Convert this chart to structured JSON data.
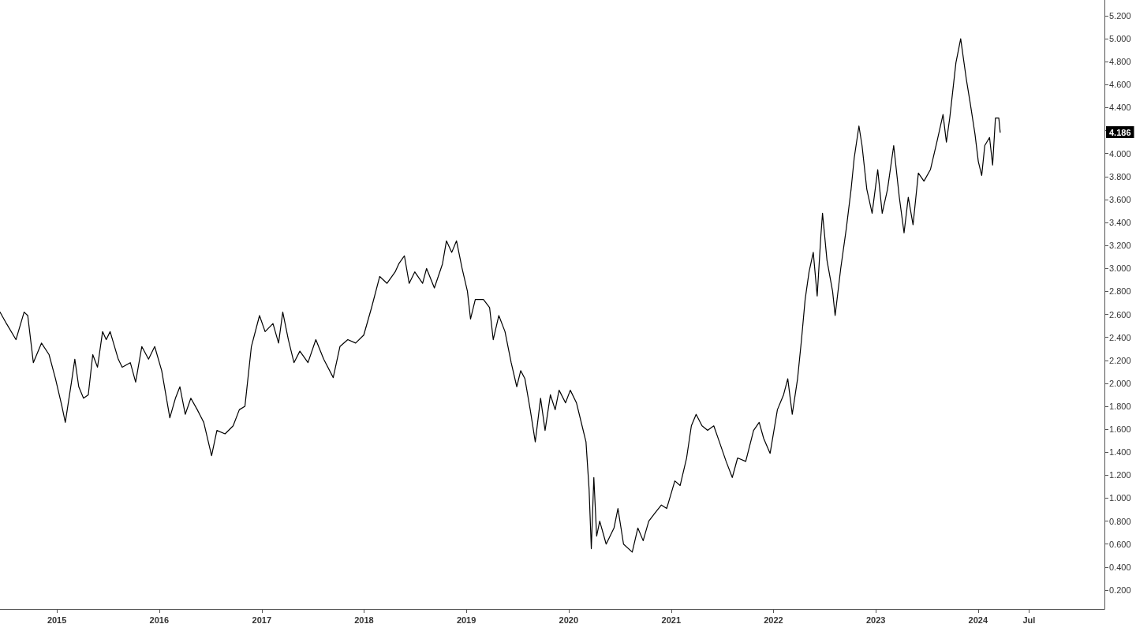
{
  "chart_data": {
    "type": "line",
    "x": [
      "2014-06-12",
      "2014-07-05",
      "2014-08-08",
      "2014-09-06",
      "2014-09-19",
      "2014-10-09",
      "2014-11-07",
      "2014-12-04",
      "2014-12-27",
      "2015-01-19",
      "2015-01-31",
      "2015-02-22",
      "2015-03-06",
      "2015-03-20",
      "2015-04-06",
      "2015-04-23",
      "2015-05-09",
      "2015-05-26",
      "2015-06-13",
      "2015-06-26",
      "2015-07-10",
      "2015-08-08",
      "2015-08-22",
      "2015-09-20",
      "2015-10-09",
      "2015-10-31",
      "2015-11-24",
      "2015-12-16",
      "2016-01-10",
      "2016-02-08",
      "2016-02-28",
      "2016-03-15",
      "2016-04-03",
      "2016-04-23",
      "2016-05-16",
      "2016-06-08",
      "2016-07-06",
      "2016-07-25",
      "2016-08-23",
      "2016-09-21",
      "2016-10-13",
      "2016-11-02",
      "2016-11-25",
      "2016-12-24",
      "2017-01-13",
      "2017-02-10",
      "2017-03-02",
      "2017-03-17",
      "2017-04-06",
      "2017-04-26",
      "2017-05-17",
      "2017-06-15",
      "2017-07-13",
      "2017-08-10",
      "2017-09-13",
      "2017-10-07",
      "2017-11-04",
      "2017-12-02",
      "2017-12-31",
      "2018-01-28",
      "2018-02-26",
      "2018-03-24",
      "2018-04-22",
      "2018-05-05",
      "2018-05-25",
      "2018-06-11",
      "2018-07-01",
      "2018-07-29",
      "2018-08-12",
      "2018-09-09",
      "2018-10-08",
      "2018-10-22",
      "2018-11-10",
      "2018-11-27",
      "2018-12-17",
      "2019-01-05",
      "2019-01-16",
      "2019-02-02",
      "2019-03-03",
      "2019-03-25",
      "2019-04-07",
      "2019-04-27",
      "2019-05-19",
      "2019-06-10",
      "2019-06-30",
      "2019-07-14",
      "2019-07-29",
      "2019-08-17",
      "2019-09-04",
      "2019-09-23",
      "2019-10-09",
      "2019-10-28",
      "2019-11-14",
      "2019-11-28",
      "2019-12-21",
      "2020-01-07",
      "2020-01-29",
      "2020-02-18",
      "2020-03-03",
      "2020-03-14",
      "2020-03-22",
      "2020-03-31",
      "2020-04-10",
      "2020-04-21",
      "2020-05-14",
      "2020-06-11",
      "2020-06-25",
      "2020-07-15",
      "2020-08-15",
      "2020-09-04",
      "2020-09-23",
      "2020-10-13",
      "2020-11-04",
      "2020-11-27",
      "2020-12-16",
      "2021-01-14",
      "2021-02-02",
      "2021-02-25",
      "2021-03-14",
      "2021-03-31",
      "2021-04-21",
      "2021-05-11",
      "2021-06-02",
      "2021-06-22",
      "2021-07-16",
      "2021-08-07",
      "2021-08-26",
      "2021-09-24",
      "2021-10-22",
      "2021-11-11",
      "2021-11-27",
      "2021-12-20",
      "2022-01-15",
      "2022-02-06",
      "2022-02-21",
      "2022-03-09",
      "2022-03-28",
      "2022-04-11",
      "2022-04-24",
      "2022-05-08",
      "2022-05-23",
      "2022-06-06",
      "2022-06-19",
      "2022-06-25",
      "2022-07-11",
      "2022-07-31",
      "2022-08-09",
      "2022-08-29",
      "2022-09-18",
      "2022-10-05",
      "2022-10-16",
      "2022-11-02",
      "2022-11-13",
      "2022-11-30",
      "2022-12-19",
      "2023-01-08",
      "2023-01-24",
      "2023-02-12",
      "2023-03-06",
      "2023-03-26",
      "2023-04-12",
      "2023-04-27",
      "2023-05-14",
      "2023-06-02",
      "2023-06-22",
      "2023-07-15",
      "2023-08-07",
      "2023-08-29",
      "2023-09-10",
      "2023-09-22",
      "2023-10-14",
      "2023-10-31",
      "2023-11-20",
      "2023-12-04",
      "2023-12-21",
      "2024-01-02",
      "2024-01-14",
      "2024-01-25",
      "2024-02-11",
      "2024-02-22",
      "2024-03-03",
      "2024-03-15",
      "2024-03-20"
    ],
    "series": [
      {
        "color": "#000000",
        "values": [
          2.62,
          2.52,
          2.38,
          2.62,
          2.59,
          2.18,
          2.35,
          2.25,
          2.04,
          1.8,
          1.66,
          2.01,
          2.21,
          1.97,
          1.87,
          1.9,
          2.25,
          2.14,
          2.45,
          2.38,
          2.45,
          2.21,
          2.14,
          2.18,
          2.01,
          2.32,
          2.21,
          2.32,
          2.11,
          1.7,
          1.87,
          1.97,
          1.73,
          1.87,
          1.77,
          1.66,
          1.37,
          1.59,
          1.56,
          1.63,
          1.77,
          1.8,
          2.32,
          2.59,
          2.45,
          2.52,
          2.35,
          2.62,
          2.38,
          2.18,
          2.28,
          2.18,
          2.38,
          2.21,
          2.05,
          2.32,
          2.38,
          2.35,
          2.42,
          2.66,
          2.93,
          2.87,
          2.97,
          3.04,
          3.11,
          2.87,
          2.97,
          2.87,
          3.0,
          2.83,
          3.04,
          3.24,
          3.14,
          3.24,
          3.0,
          2.8,
          2.56,
          2.73,
          2.73,
          2.66,
          2.38,
          2.59,
          2.45,
          2.18,
          1.97,
          2.11,
          2.04,
          1.77,
          1.49,
          1.87,
          1.59,
          1.9,
          1.77,
          1.94,
          1.83,
          1.94,
          1.83,
          1.63,
          1.49,
          1.08,
          0.56,
          1.18,
          0.67,
          0.8,
          0.6,
          0.74,
          0.91,
          0.6,
          0.53,
          0.74,
          0.63,
          0.8,
          0.87,
          0.94,
          0.91,
          1.15,
          1.11,
          1.35,
          1.63,
          1.73,
          1.63,
          1.59,
          1.63,
          1.49,
          1.32,
          1.18,
          1.35,
          1.32,
          1.59,
          1.66,
          1.52,
          1.39,
          1.77,
          1.9,
          2.04,
          1.73,
          2.04,
          2.38,
          2.73,
          2.97,
          3.14,
          2.76,
          3.28,
          3.48,
          3.07,
          2.8,
          2.59,
          3.0,
          3.35,
          3.69,
          3.96,
          4.24,
          4.07,
          3.69,
          3.48,
          3.86,
          3.48,
          3.69,
          4.07,
          3.62,
          3.31,
          3.62,
          3.38,
          3.83,
          3.76,
          3.86,
          4.1,
          4.34,
          4.1,
          4.31,
          4.79,
          5.0,
          4.65,
          4.44,
          4.17,
          3.93,
          3.81,
          4.07,
          4.14,
          3.9,
          4.31,
          4.31,
          4.186
        ]
      }
    ],
    "xlim": [
      "2014-06-12",
      "2025-03-27"
    ],
    "xticks": [
      {
        "value": "2015",
        "label": "2015"
      },
      {
        "value": "2016",
        "label": "2016"
      },
      {
        "value": "2017",
        "label": "2017"
      },
      {
        "value": "2018",
        "label": "2018"
      },
      {
        "value": "2019",
        "label": "2019"
      },
      {
        "value": "2020",
        "label": "2020"
      },
      {
        "value": "2021",
        "label": "2021"
      },
      {
        "value": "2022",
        "label": "2022"
      },
      {
        "value": "2023",
        "label": "2023"
      },
      {
        "value": "2024",
        "label": "2024"
      },
      {
        "value": "2024-07",
        "label": "Jul"
      }
    ],
    "ylim": [
      0.035,
      5.337
    ],
    "yticks": [
      {
        "value": 0.2,
        "label": "0.200"
      },
      {
        "value": 0.4,
        "label": "0.400"
      },
      {
        "value": 0.6,
        "label": "0.600"
      },
      {
        "value": 0.8,
        "label": "0.800"
      },
      {
        "value": 1.0,
        "label": "1.000"
      },
      {
        "value": 1.2,
        "label": "1.200"
      },
      {
        "value": 1.4,
        "label": "1.400"
      },
      {
        "value": 1.6,
        "label": "1.600"
      },
      {
        "value": 1.8,
        "label": "1.800"
      },
      {
        "value": 2.0,
        "label": "2.000"
      },
      {
        "value": 2.2,
        "label": "2.200"
      },
      {
        "value": 2.4,
        "label": "2.400"
      },
      {
        "value": 2.6,
        "label": "2.600"
      },
      {
        "value": 2.8,
        "label": "2.800"
      },
      {
        "value": 3.0,
        "label": "3.000"
      },
      {
        "value": 3.2,
        "label": "3.200"
      },
      {
        "value": 3.4,
        "label": "3.400"
      },
      {
        "value": 3.6,
        "label": "3.600"
      },
      {
        "value": 3.8,
        "label": "3.800"
      },
      {
        "value": 4.0,
        "label": "4.000"
      },
      {
        "value": 4.2,
        "label": null
      },
      {
        "value": 4.4,
        "label": "4.400"
      },
      {
        "value": 4.6,
        "label": "4.600"
      },
      {
        "value": 4.8,
        "label": "4.800"
      },
      {
        "value": 5.0,
        "label": "5.000"
      },
      {
        "value": 5.2,
        "label": "5.200"
      }
    ],
    "annotations": [
      {
        "text": "4.186",
        "y": 4.186
      }
    ],
    "grid": false,
    "marker": "none",
    "line_style": "solid"
  }
}
